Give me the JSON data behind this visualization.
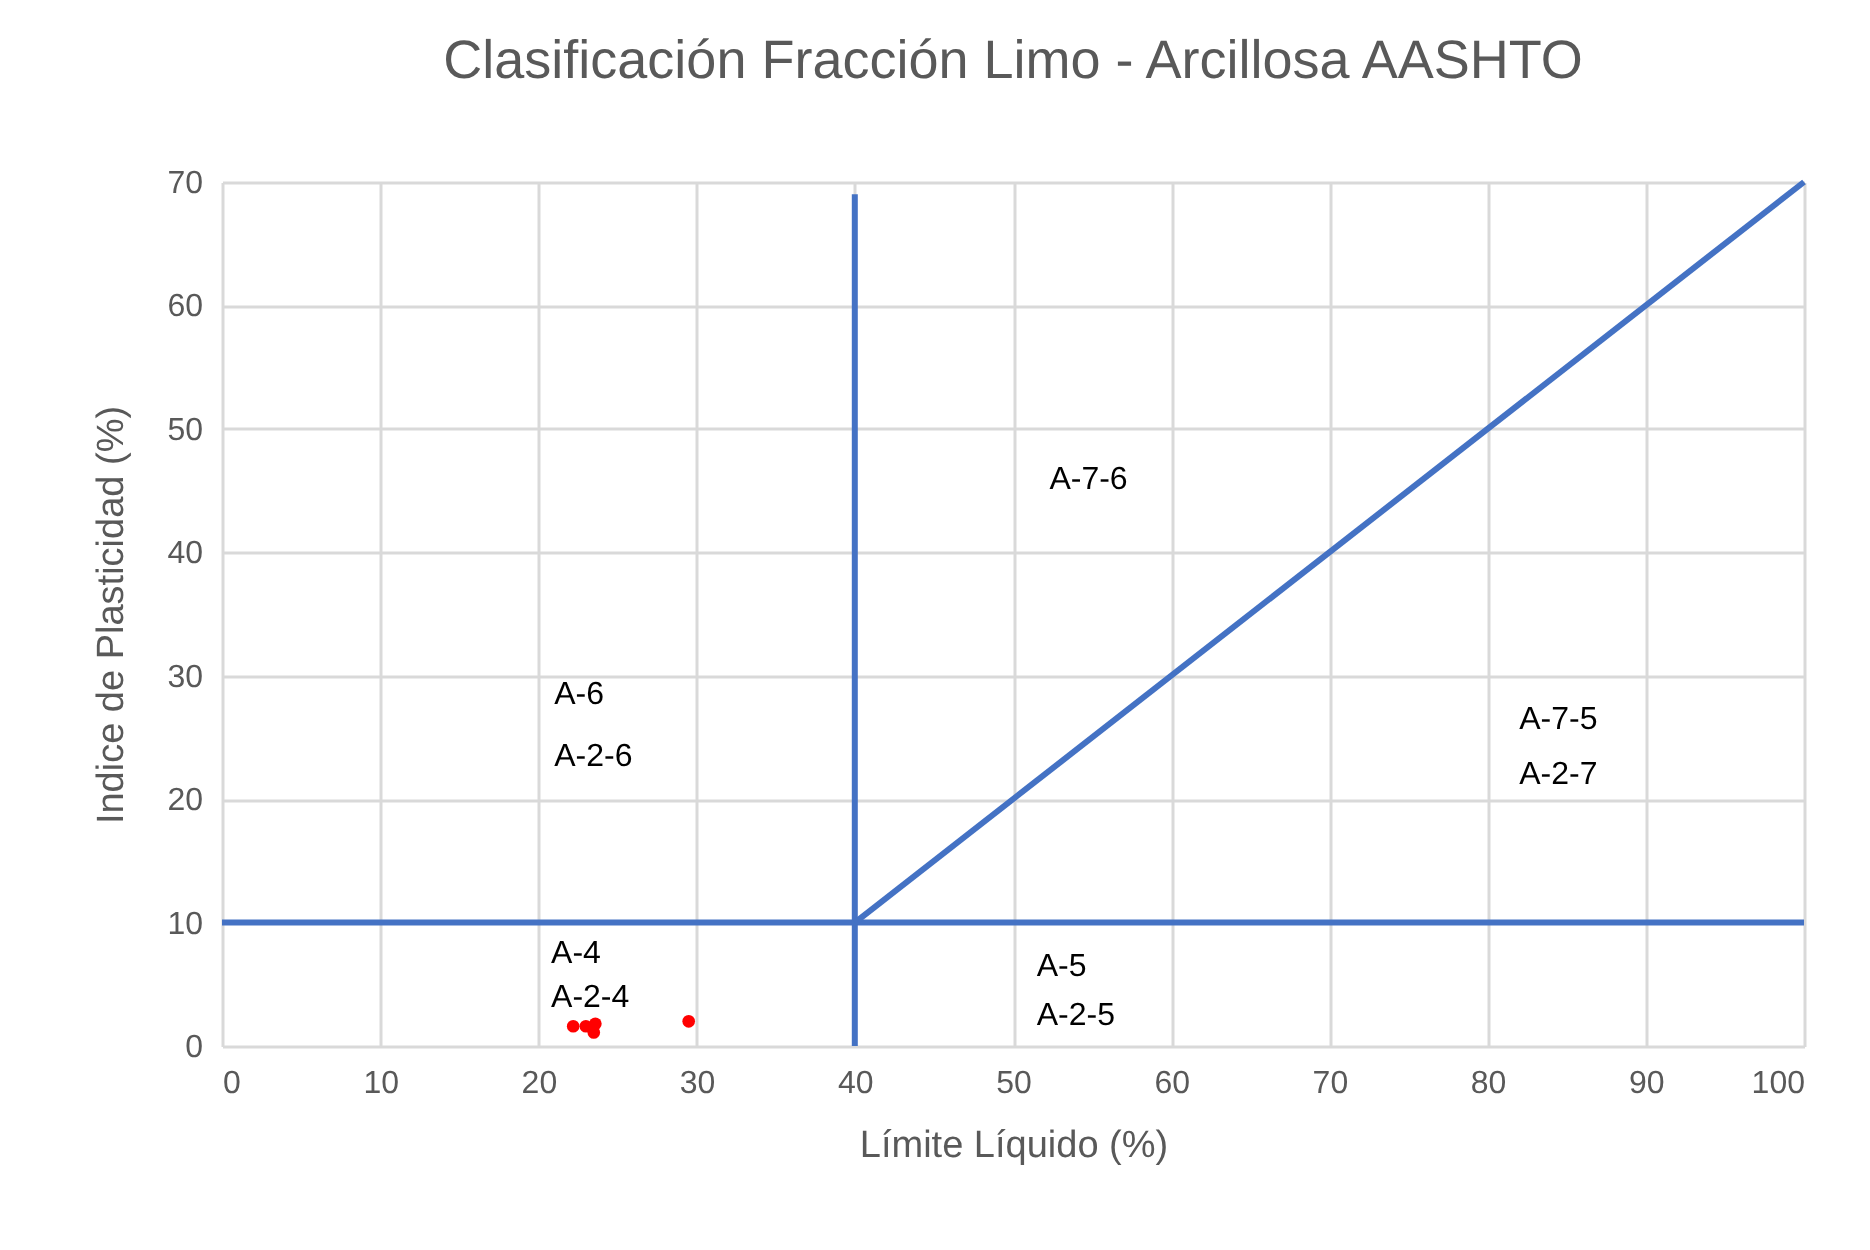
{
  "chart_data": {
    "type": "scatter",
    "title": "Clasificación Fracción Limo - Arcillosa AASHTO",
    "xlabel": "Límite Líquido (%)",
    "ylabel": "Indice de Plasticidad (%)",
    "xlim": [
      0,
      100
    ],
    "ylim": [
      0,
      70
    ],
    "xticks": [
      0,
      10,
      20,
      30,
      40,
      50,
      60,
      70,
      80,
      90,
      100
    ],
    "yticks": [
      0,
      10,
      20,
      30,
      40,
      50,
      60,
      70
    ],
    "grid": true,
    "series": [
      {
        "type": "line",
        "color": "#4472c4",
        "marker": "none",
        "x": [
          0,
          100
        ],
        "values": [
          10,
          10
        ]
      },
      {
        "type": "line",
        "color": "#4472c4",
        "marker": "none",
        "x": [
          40,
          40
        ],
        "values": [
          0,
          69
        ]
      },
      {
        "type": "line",
        "color": "#4472c4",
        "marker": "none",
        "x": [
          40,
          100
        ],
        "values": [
          10,
          70
        ]
      },
      {
        "color": "#ff0000",
        "marker": "circle",
        "x": [
          22.2,
          23.0,
          23.5,
          23.6,
          29.5
        ],
        "values": [
          1.6,
          1.6,
          1.1,
          1.8,
          2.0
        ]
      }
    ],
    "annotations": [
      "A-7-6",
      "A-6",
      "A-2-6",
      "A-7-5",
      "A-2-7",
      "A-4",
      "A-2-4",
      "A-5",
      "A-2-5"
    ]
  }
}
